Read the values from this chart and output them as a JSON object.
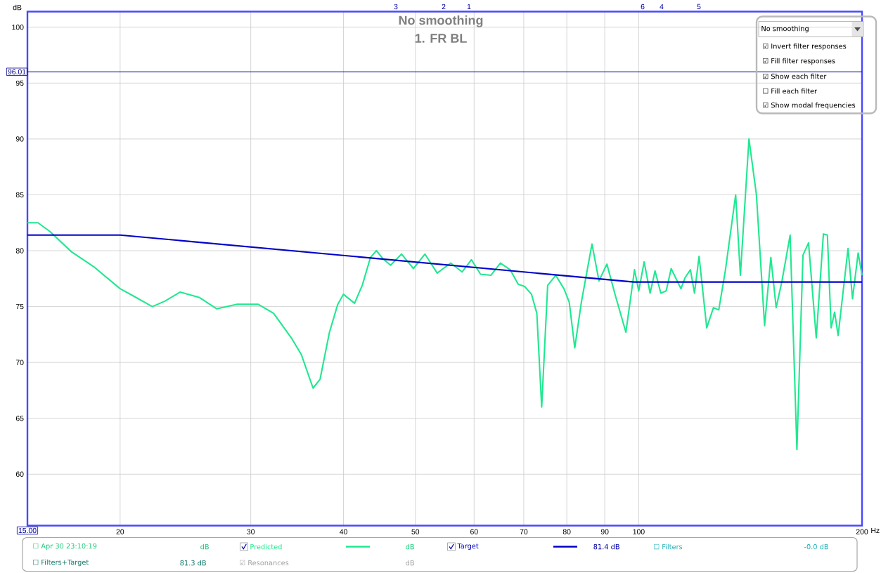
{
  "chart_data": {
    "type": "line",
    "title": "No smoothing",
    "subtitle": "1. FR BL",
    "xlabel": "Hz",
    "ylabel": "dB",
    "log": "x",
    "grid": true,
    "legend": "bottom",
    "xlim": [
      15,
      200
    ],
    "ylim": [
      55.4,
      101.4
    ],
    "xticks": [
      20,
      30,
      40,
      50,
      60,
      70,
      80,
      90,
      100,
      200
    ],
    "yticks": [
      60,
      65,
      70,
      75,
      80,
      85,
      90,
      95,
      100
    ],
    "series": [
      {
        "name": "Predicted",
        "color": "#20e890",
        "x": [
          15,
          15.5,
          16.1,
          17.2,
          18.4,
          20,
          20.9,
          22.1,
          23.0,
          24.1,
          25.6,
          27.0,
          28.7,
          30.7,
          32.2,
          34.1,
          35.1,
          36.4,
          37.2,
          38.3,
          39.3,
          40,
          41.4,
          42.4,
          43.5,
          44.3,
          45.2,
          46.3,
          47.9,
          49.7,
          51.5,
          53.5,
          55.8,
          57.8,
          59.5,
          61.2,
          63.2,
          65.1,
          67.1,
          68.8,
          70.2,
          71.7,
          72.9,
          74.0,
          75.4,
          77.3,
          79.3,
          80.6,
          82.0,
          83.7,
          86.5,
          88.4,
          90.6,
          92.9,
          96.1,
          98.7,
          100,
          101.7,
          103.6,
          105.2,
          107.1,
          108.9,
          110.6,
          112.1,
          114.0,
          115.5,
          117.4,
          118.9,
          120.6,
          123.5,
          126.1,
          128.2,
          130.9,
          135.1,
          137.1,
          140.8,
          144.1,
          147.8,
          150.7,
          153.2,
          156.0,
          160.0,
          163.4,
          166.5,
          169.4,
          173.5,
          177.4,
          179.6,
          181.7,
          183.7,
          185.7,
          191.5,
          194.2,
          197.6,
          200
        ],
        "values": [
          82.5,
          82.5,
          81.7,
          79.9,
          78.6,
          76.6,
          75.9,
          75.0,
          75.5,
          76.3,
          75.8,
          74.8,
          75.2,
          75.2,
          74.4,
          72.1,
          70.7,
          67.7,
          68.5,
          72.7,
          75.2,
          76.1,
          75.3,
          76.9,
          79.4,
          80.0,
          79.3,
          78.7,
          79.7,
          78.4,
          79.7,
          78.0,
          78.9,
          78.1,
          79.2,
          77.9,
          77.8,
          78.9,
          78.3,
          77.0,
          76.8,
          76.1,
          74.4,
          66.0,
          76.9,
          77.8,
          76.6,
          75.4,
          71.3,
          75.4,
          80.6,
          77.3,
          78.8,
          76.1,
          72.7,
          78.3,
          76.4,
          79.0,
          76.2,
          78.2,
          76.2,
          76.4,
          78.4,
          77.6,
          76.6,
          77.6,
          78.3,
          76.2,
          79.5,
          73.1,
          74.9,
          74.7,
          78.3,
          85.0,
          77.8,
          90.0,
          85.0,
          73.3,
          79.4,
          74.9,
          77.3,
          81.4,
          62.2,
          79.6,
          80.7,
          72.2,
          81.5,
          81.4,
          73.1,
          74.5,
          72.4,
          80.2,
          75.7,
          79.8,
          77.8
        ]
      },
      {
        "name": "Target",
        "color": "#0000c8",
        "x": [
          15,
          20,
          98.5,
          200
        ],
        "values": [
          81.4,
          81.4,
          77.2,
          77.2
        ]
      }
    ],
    "ref_lines": [
      {
        "axis": "y",
        "value": 96.01,
        "label": "96.01",
        "color": "#00008b"
      }
    ],
    "annotations": [
      "3",
      "2",
      "1",
      "6",
      "4",
      "5",
      "No smoothing",
      "☑ Invert filter responses",
      "☑ Fill filter responses",
      "☑ Show each filter",
      "☐ Fill each filter",
      "☑ Show modal frequencies",
      "☐ Apr 30 23:10:19",
      "dB",
      "dB",
      "81.4 dB",
      "☐ Filters",
      "-0.0 dB",
      "☐ Filters+Target",
      "81.3 dB",
      "☑ Resonances",
      "dB",
      "15.00"
    ]
  }
}
